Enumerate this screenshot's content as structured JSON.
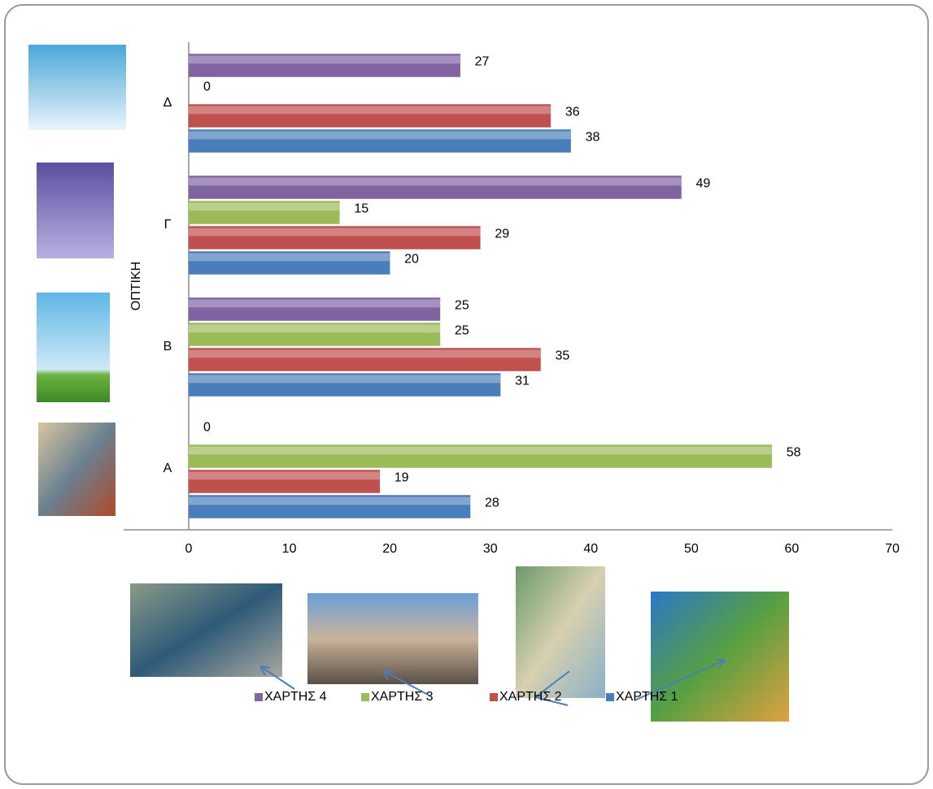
{
  "chart_data": {
    "type": "hbar",
    "ylabel": "ΟΠΤΙΚΗ",
    "categories": [
      "Α",
      "Β",
      "Γ",
      "Δ"
    ],
    "series": [
      {
        "name": "ΧΑΡΤΗΣ 1",
        "color": "#4a7ebb",
        "values": [
          28,
          31,
          20,
          38
        ]
      },
      {
        "name": "ΧΑΡΤΗΣ 2",
        "color": "#c0504d",
        "values": [
          19,
          35,
          29,
          36
        ]
      },
      {
        "name": "ΧΑΡΤΗΣ 3",
        "color": "#9bbb59",
        "values": [
          58,
          25,
          15,
          0
        ]
      },
      {
        "name": "ΧΑΡΤΗΣ 4",
        "color": "#8064a2",
        "values": [
          0,
          25,
          49,
          27
        ]
      }
    ],
    "xlim": [
      0,
      70
    ],
    "xticks": [
      0,
      10,
      20,
      30,
      40,
      50,
      60,
      70
    ],
    "legend": "bottom"
  }
}
